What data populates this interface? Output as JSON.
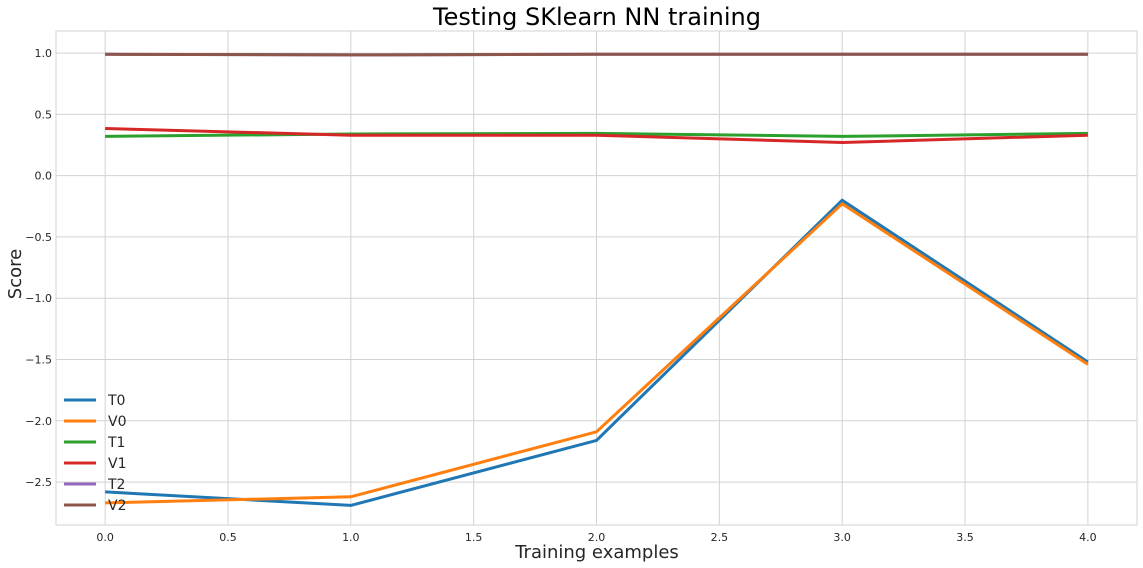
{
  "chart_data": {
    "type": "line",
    "title": "Testing SKlearn NN training",
    "xlabel": "Training examples",
    "ylabel": "Score",
    "x": [
      0,
      1,
      2,
      3,
      4
    ],
    "xlim": [
      -0.2,
      4.2
    ],
    "ylim": [
      -2.85,
      1.18
    ],
    "xticks": [
      0.0,
      0.5,
      1.0,
      1.5,
      2.0,
      2.5,
      3.0,
      3.5,
      4.0
    ],
    "xtick_labels": [
      "0.0",
      "0.5",
      "1.0",
      "1.5",
      "2.0",
      "2.5",
      "3.0",
      "3.5",
      "4.0"
    ],
    "yticks": [
      -2.5,
      -2.0,
      -1.5,
      -1.0,
      -0.5,
      0.0,
      0.5,
      1.0
    ],
    "ytick_labels": [
      "−2.5",
      "−2.0",
      "−1.5",
      "−1.0",
      "−0.5",
      "0.0",
      "0.5",
      "1.0"
    ],
    "grid": true,
    "legend_position": "lower-left",
    "series": [
      {
        "name": "T0",
        "color": "#1f77b4",
        "values": [
          -2.58,
          -2.69,
          -2.16,
          -0.2,
          -1.52
        ]
      },
      {
        "name": "V0",
        "color": "#ff7f0e",
        "values": [
          -2.67,
          -2.62,
          -2.09,
          -0.23,
          -1.54
        ]
      },
      {
        "name": "T1",
        "color": "#2ca02c",
        "values": [
          0.32,
          0.34,
          0.345,
          0.32,
          0.345
        ]
      },
      {
        "name": "V1",
        "color": "#d62728",
        "values": [
          0.385,
          0.33,
          0.33,
          0.27,
          0.33
        ]
      },
      {
        "name": "T2",
        "color": "#9467bd",
        "values": [
          0.99,
          0.985,
          0.99,
          0.99,
          0.99
        ]
      },
      {
        "name": "V2",
        "color": "#8c564b",
        "values": [
          0.99,
          0.985,
          0.99,
          0.99,
          0.99
        ]
      }
    ]
  }
}
